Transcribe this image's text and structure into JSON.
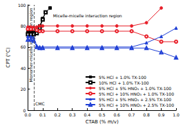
{
  "chart_data": {
    "type": "line",
    "x_label": "CTAB (% m/v)",
    "y_label": "CPT (°C)",
    "xlim": [
      0,
      1.0
    ],
    "xticks": [
      {
        "value": 0,
        "label": "0.0"
      },
      0.1,
      0.2,
      0.3,
      0.4,
      0.5,
      0.6,
      0.7,
      0.8,
      0.9,
      {
        "value": 1.0,
        "label": "1.0"
      }
    ],
    "ylim": [
      0,
      100
    ],
    "yticks": [
      0,
      20,
      40,
      60,
      80,
      100
    ],
    "grid": false,
    "legend": "lower right",
    "series": [
      {
        "name": "5% HCl + 1.0% TX-100",
        "color": "#000000",
        "marker": "square",
        "line_style": "solid",
        "x": [
          0,
          0.02,
          0.04,
          0.06,
          0.08,
          0.1,
          0.12,
          0.15
        ],
        "values": [
          74,
          74,
          74,
          75,
          80,
          87,
          93,
          97
        ]
      },
      {
        "name": "10% HCl + 1.0% TX-100",
        "color": "#000000",
        "marker": "open square",
        "line_style": "solid",
        "x": [
          0,
          0.02,
          0.04,
          0.06,
          0.08,
          0.1,
          0.12
        ],
        "values": [
          72,
          72,
          72,
          73,
          78,
          86,
          93
        ]
      },
      {
        "name": "5% HCl + 5% HNO₃ + 1.0% TX-100",
        "color": "#e8202a",
        "marker": "circle",
        "line_style": "solid",
        "x": [
          0,
          0.02,
          0.04,
          0.06,
          0.08,
          0.1,
          0.2,
          0.3,
          0.4,
          0.5,
          0.6,
          0.7,
          0.8,
          0.9
        ],
        "values": [
          79,
          79,
          79,
          79,
          80,
          80,
          80,
          80,
          80,
          80,
          80,
          80,
          83,
          97
        ]
      },
      {
        "name": "5% HCl + 10% HNO₃ + 1.0% TX-100",
        "color": "#e8202a",
        "marker": "open circle",
        "line_style": "solid",
        "x": [
          0,
          0.02,
          0.04,
          0.06,
          0.08,
          0.1,
          0.2,
          0.3,
          0.4,
          0.5,
          0.6,
          0.7,
          0.8,
          0.9,
          1.0
        ],
        "values": [
          77,
          77,
          77,
          76,
          75,
          75,
          75,
          75,
          75,
          75,
          75,
          75,
          70,
          65,
          65
        ]
      },
      {
        "name": "5% HCl + 5% HNO₃ + 2.5% TX-100",
        "color": "#1f3fd6",
        "marker": "triangle",
        "line_style": "solid",
        "x": [
          0,
          0.02,
          0.04,
          0.06,
          0.08,
          0.1,
          0.2,
          0.3,
          0.4,
          0.5,
          0.6,
          0.7,
          0.8,
          0.9,
          1.0
        ],
        "values": [
          70,
          70,
          69,
          61,
          60,
          60,
          60,
          60,
          60,
          60,
          60,
          60,
          64,
          70,
          78
        ]
      },
      {
        "name": "5% HCl + 10% HNO₃ + 2.5% TX-100",
        "color": "#1f3fd6",
        "marker": "open triangle",
        "line_style": "solid",
        "x": [
          0,
          0.02,
          0.04,
          0.06,
          0.08,
          0.1,
          0.2,
          0.3,
          0.4,
          0.5,
          0.6,
          0.7,
          0.8,
          0.9,
          1.0
        ],
        "values": [
          67,
          67,
          66,
          60,
          59,
          59,
          59,
          59,
          59,
          59,
          59,
          59,
          59,
          55,
          50
        ]
      }
    ],
    "vlines": [
      {
        "x": 0.04,
        "line_style": "dashed",
        "color": "#555555"
      }
    ],
    "annotations": [
      {
        "text": "Monomer-micelle interaction region",
        "x": 0.018,
        "y": 62,
        "orientation": "vertical"
      },
      {
        "text": "Micelle-micelle interaction region",
        "x": 0.17,
        "y": 90,
        "orientation": "horizontal"
      },
      {
        "text": "CMC",
        "x": 0.05,
        "y": 6,
        "orientation": "horizontal"
      }
    ]
  }
}
